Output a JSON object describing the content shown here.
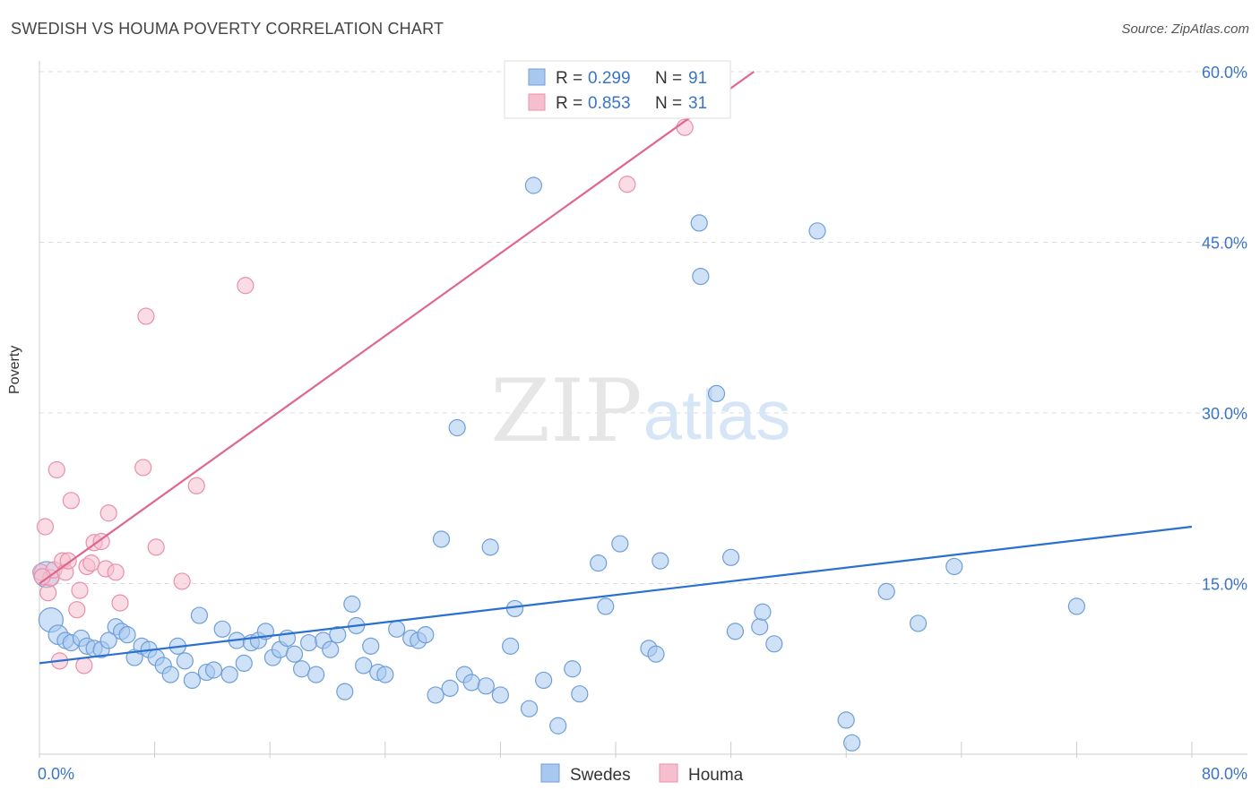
{
  "title": "SWEDISH VS HOUMA POVERTY CORRELATION CHART",
  "source": "Source: ZipAtlas.com",
  "watermark": {
    "zip": "ZIP",
    "atlas": "atlas"
  },
  "chart_data": {
    "type": "scatter",
    "ylabel": "Poverty",
    "xlabel": "",
    "xlim": [
      0,
      80
    ],
    "ylim": [
      0,
      60
    ],
    "x_tick_labels": {
      "min": "0.0%",
      "max": "80.0%"
    },
    "y_ticks": [
      15,
      30,
      45,
      60
    ],
    "y_tick_labels": [
      "15.0%",
      "30.0%",
      "45.0%",
      "60.0%"
    ],
    "grid": true,
    "legend_bottom": [
      "Swedes",
      "Houma"
    ],
    "stats": [
      {
        "r_label": "R = ",
        "r": "0.299",
        "n_label": "N = ",
        "n": "91"
      },
      {
        "r_label": "R = ",
        "r": "0.853",
        "n_label": "N = ",
        "n": "31"
      }
    ],
    "colors": {
      "swedes_fill": "#a8c8f0",
      "swedes_stroke": "#6f9fd8",
      "swedes_line": "#2970d0",
      "houma_fill": "#f6bfd0",
      "houma_stroke": "#e890ac",
      "houma_line": "#e06690",
      "tick_label": "#3a74c8"
    },
    "series": [
      {
        "name": "Swedes",
        "trend": {
          "x": [
            0,
            80
          ],
          "y": [
            8.0,
            20.0
          ]
        },
        "points": [
          [
            0.5,
            15.8,
            1.6
          ],
          [
            0.8,
            11.8,
            1.5
          ],
          [
            1.3,
            10.5,
            1.2
          ],
          [
            1.8,
            10.0,
            1.0
          ],
          [
            2.2,
            9.8,
            1.0
          ],
          [
            2.9,
            10.2,
            1.0
          ],
          [
            3.3,
            9.5,
            1.0
          ],
          [
            3.8,
            9.3,
            1.0
          ],
          [
            4.3,
            9.2,
            1.0
          ],
          [
            4.8,
            10.0,
            1.0
          ],
          [
            5.3,
            11.2,
            1.0
          ],
          [
            5.7,
            10.8,
            1.0
          ],
          [
            6.1,
            10.5,
            1.0
          ],
          [
            6.6,
            8.5,
            1.0
          ],
          [
            7.1,
            9.5,
            1.0
          ],
          [
            7.6,
            9.2,
            1.0
          ],
          [
            8.1,
            8.5,
            1.0
          ],
          [
            8.6,
            7.8,
            1.0
          ],
          [
            9.1,
            7.0,
            1.0
          ],
          [
            9.6,
            9.5,
            1.0
          ],
          [
            10.1,
            8.2,
            1.0
          ],
          [
            10.6,
            6.5,
            1.0
          ],
          [
            11.1,
            12.2,
            1.0
          ],
          [
            11.6,
            7.2,
            1.0
          ],
          [
            12.1,
            7.4,
            1.0
          ],
          [
            12.7,
            11.0,
            1.0
          ],
          [
            13.2,
            7.0,
            1.0
          ],
          [
            13.7,
            10.0,
            1.0
          ],
          [
            14.2,
            8.0,
            1.0
          ],
          [
            14.7,
            9.8,
            1.0
          ],
          [
            15.2,
            10.0,
            1.0
          ],
          [
            15.7,
            10.8,
            1.0
          ],
          [
            16.2,
            8.5,
            1.0
          ],
          [
            16.7,
            9.2,
            1.0
          ],
          [
            17.2,
            10.2,
            1.0
          ],
          [
            17.7,
            8.8,
            1.0
          ],
          [
            18.2,
            7.5,
            1.0
          ],
          [
            18.7,
            9.8,
            1.0
          ],
          [
            19.2,
            7.0,
            1.0
          ],
          [
            19.7,
            10.0,
            1.0
          ],
          [
            20.2,
            9.2,
            1.0
          ],
          [
            20.7,
            10.5,
            1.0
          ],
          [
            21.2,
            5.5,
            1.0
          ],
          [
            21.7,
            13.2,
            1.0
          ],
          [
            22.0,
            11.3,
            1.0
          ],
          [
            22.5,
            7.8,
            1.0
          ],
          [
            23.0,
            9.5,
            1.0
          ],
          [
            23.5,
            7.2,
            1.0
          ],
          [
            24.0,
            7.0,
            1.0
          ],
          [
            24.8,
            11.0,
            1.0
          ],
          [
            25.8,
            10.2,
            1.0
          ],
          [
            26.3,
            10.0,
            1.0
          ],
          [
            26.8,
            10.5,
            1.0
          ],
          [
            27.5,
            5.2,
            1.0
          ],
          [
            27.9,
            18.9,
            1.0
          ],
          [
            28.5,
            5.8,
            1.0
          ],
          [
            29.0,
            28.7,
            1.0
          ],
          [
            29.5,
            7.0,
            1.0
          ],
          [
            30.0,
            6.3,
            1.0
          ],
          [
            31.0,
            6.0,
            1.0
          ],
          [
            31.3,
            18.2,
            1.0
          ],
          [
            32.0,
            5.2,
            1.0
          ],
          [
            32.7,
            9.5,
            1.0
          ],
          [
            33.0,
            12.8,
            1.0
          ],
          [
            34.0,
            4.0,
            1.0
          ],
          [
            34.3,
            50.0,
            1.0
          ],
          [
            35.0,
            6.5,
            1.0
          ],
          [
            36.0,
            2.5,
            1.0
          ],
          [
            37.0,
            7.5,
            1.0
          ],
          [
            37.5,
            5.3,
            1.0
          ],
          [
            38.8,
            16.8,
            1.0
          ],
          [
            39.3,
            13.0,
            1.0
          ],
          [
            40.3,
            18.5,
            1.0
          ],
          [
            42.3,
            9.3,
            1.0
          ],
          [
            42.8,
            8.8,
            1.0
          ],
          [
            43.1,
            17.0,
            1.0
          ],
          [
            45.8,
            46.7,
            1.0
          ],
          [
            45.9,
            42.0,
            1.0
          ],
          [
            47.0,
            31.7,
            1.0
          ],
          [
            48.0,
            17.3,
            1.0
          ],
          [
            48.3,
            10.8,
            1.0
          ],
          [
            50.0,
            11.2,
            1.0
          ],
          [
            50.2,
            12.5,
            1.0
          ],
          [
            51.0,
            9.7,
            1.0
          ],
          [
            54.0,
            46.0,
            1.0
          ],
          [
            56.0,
            3.0,
            1.0
          ],
          [
            56.4,
            1.0,
            1.0
          ],
          [
            58.8,
            14.3,
            1.0
          ],
          [
            61.0,
            11.5,
            1.0
          ],
          [
            63.5,
            16.5,
            1.0
          ],
          [
            72.0,
            13.0,
            1.0
          ]
        ]
      },
      {
        "name": "Houma",
        "trend": {
          "x": [
            0,
            49.6
          ],
          "y": [
            15.0,
            60.0
          ]
        },
        "points": [
          [
            0.1,
            16.0,
            1.0
          ],
          [
            0.4,
            20.0,
            1.0
          ],
          [
            0.6,
            14.2,
            1.0
          ],
          [
            0.8,
            15.5,
            1.0
          ],
          [
            1.0,
            16.2,
            1.0
          ],
          [
            1.2,
            25.0,
            1.0
          ],
          [
            1.4,
            8.2,
            1.0
          ],
          [
            1.6,
            17.0,
            1.0
          ],
          [
            1.8,
            16.0,
            1.0
          ],
          [
            2.0,
            17.0,
            1.0
          ],
          [
            2.2,
            22.3,
            1.0
          ],
          [
            2.6,
            12.7,
            1.0
          ],
          [
            2.8,
            14.4,
            1.0
          ],
          [
            3.1,
            7.8,
            1.0
          ],
          [
            3.3,
            16.5,
            1.0
          ],
          [
            3.6,
            16.8,
            1.0
          ],
          [
            3.8,
            18.6,
            1.0
          ],
          [
            4.3,
            18.7,
            1.0
          ],
          [
            4.6,
            16.3,
            1.0
          ],
          [
            4.8,
            21.2,
            1.0
          ],
          [
            5.3,
            16.0,
            1.0
          ],
          [
            5.6,
            13.3,
            1.0
          ],
          [
            7.2,
            25.2,
            1.0
          ],
          [
            7.4,
            38.5,
            1.0
          ],
          [
            8.1,
            18.2,
            1.0
          ],
          [
            9.9,
            15.2,
            1.0
          ],
          [
            10.9,
            23.6,
            1.0
          ],
          [
            14.3,
            41.2,
            1.0
          ],
          [
            40.8,
            50.1,
            1.0
          ],
          [
            44.8,
            55.1,
            1.0
          ],
          [
            0.2,
            15.6,
            1.0
          ]
        ]
      }
    ]
  }
}
